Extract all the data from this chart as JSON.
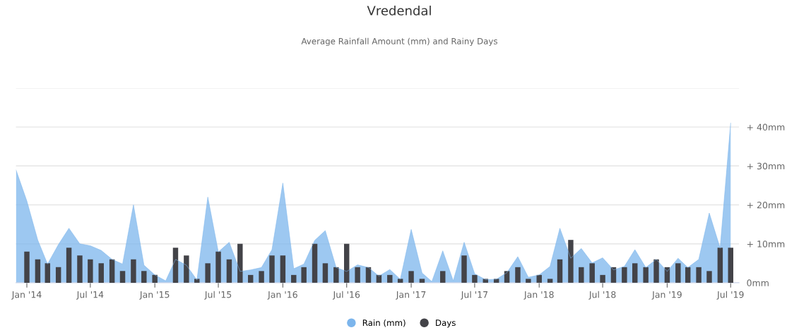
{
  "chart_data": {
    "type": "area",
    "title": "Vredendal",
    "subtitle": "Average Rainfall Amount (mm) and Rainy Days",
    "x": [
      "2013-12",
      "2014-01",
      "2014-02",
      "2014-03",
      "2014-04",
      "2014-05",
      "2014-06",
      "2014-07",
      "2014-08",
      "2014-09",
      "2014-10",
      "2014-11",
      "2014-12",
      "2015-01",
      "2015-02",
      "2015-03",
      "2015-04",
      "2015-05",
      "2015-06",
      "2015-07",
      "2015-08",
      "2015-09",
      "2015-10",
      "2015-11",
      "2015-12",
      "2016-01",
      "2016-02",
      "2016-03",
      "2016-04",
      "2016-05",
      "2016-06",
      "2016-07",
      "2016-08",
      "2016-09",
      "2016-10",
      "2016-11",
      "2016-12",
      "2017-01",
      "2017-02",
      "2017-03",
      "2017-04",
      "2017-05",
      "2017-06",
      "2017-07",
      "2017-08",
      "2017-09",
      "2017-10",
      "2017-11",
      "2017-12",
      "2018-01",
      "2018-02",
      "2018-03",
      "2018-04",
      "2018-05",
      "2018-06",
      "2018-07",
      "2018-08",
      "2018-09",
      "2018-10",
      "2018-11",
      "2018-12",
      "2019-01",
      "2019-02",
      "2019-03",
      "2019-04",
      "2019-05",
      "2019-06",
      "2019-07"
    ],
    "series": [
      {
        "name": "Rain (mm)",
        "color": "#7cb5ec",
        "values": [
          29,
          21,
          11,
          4.8,
          9.8,
          14,
          10,
          9.5,
          8.3,
          6,
          4.8,
          20,
          4.5,
          2,
          0.5,
          6,
          4.5,
          0.7,
          22,
          7.9,
          10.4,
          2.9,
          3.3,
          3.9,
          8.5,
          25.6,
          3.6,
          4.8,
          10.9,
          13.4,
          3.9,
          2.9,
          4.6,
          3.9,
          1.7,
          3.4,
          0.9,
          13.7,
          2.5,
          0.3,
          8.2,
          0.5,
          10.4,
          2.3,
          0.8,
          0.9,
          2.6,
          6.7,
          1.4,
          2,
          4.2,
          14,
          6.3,
          8.8,
          5.1,
          6.4,
          3.3,
          4.2,
          8.5,
          3.9,
          6,
          2.9,
          6.3,
          3.9,
          6,
          17.9,
          8.9,
          41
        ]
      },
      {
        "name": "Days",
        "type": "bar",
        "color": "#434348",
        "values": [
          null,
          8,
          6,
          5,
          4,
          9,
          7,
          6,
          5,
          6,
          3,
          6,
          3,
          2,
          0,
          9,
          7,
          1,
          5,
          8,
          6,
          10,
          2,
          3,
          7,
          7,
          2,
          4,
          10,
          5,
          4,
          10,
          4,
          4,
          2,
          2,
          1,
          3,
          1,
          0,
          3,
          0,
          7,
          2,
          1,
          1,
          3,
          4,
          1,
          2,
          1,
          6,
          11,
          4,
          5,
          2,
          4,
          4,
          5,
          4,
          6,
          4,
          5,
          4,
          4,
          3,
          9,
          9
        ]
      }
    ],
    "xlim": [
      "2013-12-01",
      "2019-07-25"
    ],
    "xticks": [
      {
        "value": "2014-01",
        "label": "Jan '14"
      },
      {
        "value": "2014-07",
        "label": "Jul '14"
      },
      {
        "value": "2015-01",
        "label": "Jan '15"
      },
      {
        "value": "2015-07",
        "label": "Jul '15"
      },
      {
        "value": "2016-01",
        "label": "Jan '16"
      },
      {
        "value": "2016-07",
        "label": "Jul '16"
      },
      {
        "value": "2017-01",
        "label": "Jan '17"
      },
      {
        "value": "2017-07",
        "label": "Jul '17"
      },
      {
        "value": "2018-01",
        "label": "Jan '18"
      },
      {
        "value": "2018-07",
        "label": "Jul '18"
      },
      {
        "value": "2019-01",
        "label": "Jan '19"
      },
      {
        "value": "2019-07",
        "label": "Jul '19"
      }
    ],
    "ylim": [
      0,
      50
    ],
    "yticks": [
      {
        "value": 0,
        "label": "0mm"
      },
      {
        "value": 10,
        "label": "+ 10mm"
      },
      {
        "value": 20,
        "label": "+ 20mm"
      },
      {
        "value": 30,
        "label": "+ 30mm"
      },
      {
        "value": 40,
        "label": "+ 40mm"
      },
      {
        "value": 50,
        "label": null
      }
    ],
    "grid": "y",
    "legend": "bottom"
  }
}
